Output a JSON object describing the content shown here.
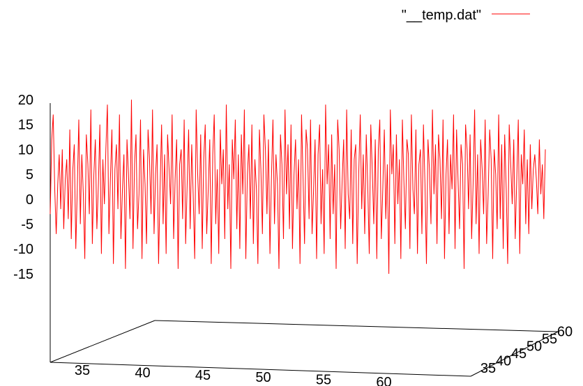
{
  "chart_data": {
    "type": "line",
    "projection": "3d",
    "legend": {
      "label": "\"__temp.dat\"",
      "color": "#ff0000",
      "placement": "top-right"
    },
    "z_ticks": [
      "20",
      "15",
      "10",
      "5",
      "0",
      "-5",
      "-10",
      "-15"
    ],
    "x_ticks": [
      "35",
      "40",
      "45",
      "50",
      "55",
      "60"
    ],
    "y_ticks": [
      "35",
      "40",
      "45",
      "50",
      "55",
      "60"
    ],
    "zlim": [
      -15,
      20
    ],
    "xlim": [
      33,
      62
    ],
    "series": [
      {
        "values": [
          -3,
          12,
          17,
          2,
          -7,
          3,
          9,
          -2,
          10,
          -6,
          4,
          8,
          -4,
          14,
          -8,
          6,
          11,
          -10,
          2,
          16,
          -5,
          9,
          1,
          -12,
          13,
          7,
          -3,
          18,
          -9,
          5,
          12,
          -6,
          3,
          15,
          -11,
          8,
          -1,
          10,
          19,
          -7,
          4,
          14,
          -13,
          6,
          11,
          -2,
          17,
          -8,
          2,
          9,
          -14,
          12,
          5,
          -4,
          20,
          -10,
          7,
          13,
          -6,
          1,
          16,
          -12,
          10,
          3,
          -9,
          14,
          8,
          -3,
          18,
          -7,
          5,
          11,
          -13,
          2,
          15,
          -5,
          9,
          -11,
          13,
          6,
          -1,
          17,
          -8,
          4,
          12,
          -14,
          7,
          10,
          -4,
          16,
          -9,
          3,
          14,
          -6,
          11,
          1,
          -12,
          18,
          5,
          -3,
          13,
          -10,
          8,
          15,
          -7,
          2,
          12,
          -13,
          9,
          17,
          -5,
          6,
          -11,
          14,
          3,
          10,
          -8,
          19,
          -2,
          7,
          -14,
          12,
          4,
          16,
          -6,
          9,
          -10,
          13,
          1,
          18,
          -12,
          5,
          11,
          -4,
          15,
          -9,
          8,
          2,
          -13,
          14,
          6,
          -7,
          17,
          10,
          -3,
          12,
          -11,
          4,
          16,
          -5,
          9,
          3,
          -14,
          13,
          7,
          -8,
          18,
          1,
          11,
          -6,
          15,
          -10,
          5,
          12,
          -2,
          8,
          -13,
          17,
          4,
          -9,
          14,
          10,
          -4,
          16,
          -7,
          2,
          12,
          -12,
          9,
          15,
          -5,
          6,
          -11,
          19,
          3,
          11,
          -8,
          13,
          -3,
          7,
          -14,
          16,
          10,
          -6,
          4,
          12,
          -10,
          18,
          1,
          -4,
          14,
          -9,
          8,
          11,
          -13,
          5,
          17,
          -2,
          9,
          -7,
          13,
          3,
          -11,
          15,
          6,
          -5,
          12,
          -12,
          10,
          16,
          -8,
          2,
          14,
          -4,
          7,
          -15,
          18,
          5,
          11,
          -9,
          13,
          -1,
          8,
          -12,
          16,
          4,
          -6,
          12,
          9,
          -10,
          17,
          2,
          -3,
          14,
          -11,
          7,
          10,
          -7,
          15,
          3,
          -13,
          12,
          6,
          -5,
          18,
          1,
          11,
          -9,
          13,
          8,
          -4,
          16,
          -12,
          5,
          12,
          -7,
          9,
          2,
          17,
          -10,
          14,
          4,
          -6,
          11,
          7,
          -14,
          15,
          10,
          -2,
          13,
          -8,
          3,
          18,
          -5,
          9,
          -11,
          12,
          6,
          -3,
          16,
          -9,
          1,
          14,
          8,
          -12,
          10,
          5,
          -6,
          17,
          -4,
          11,
          -10,
          13,
          2,
          -13,
          15,
          7,
          -1,
          12,
          -8,
          4,
          16,
          -11,
          9,
          3,
          14,
          -5,
          8,
          -7,
          11,
          -2,
          6,
          9,
          4,
          -3,
          12,
          1,
          7,
          -4,
          10
        ]
      }
    ]
  }
}
